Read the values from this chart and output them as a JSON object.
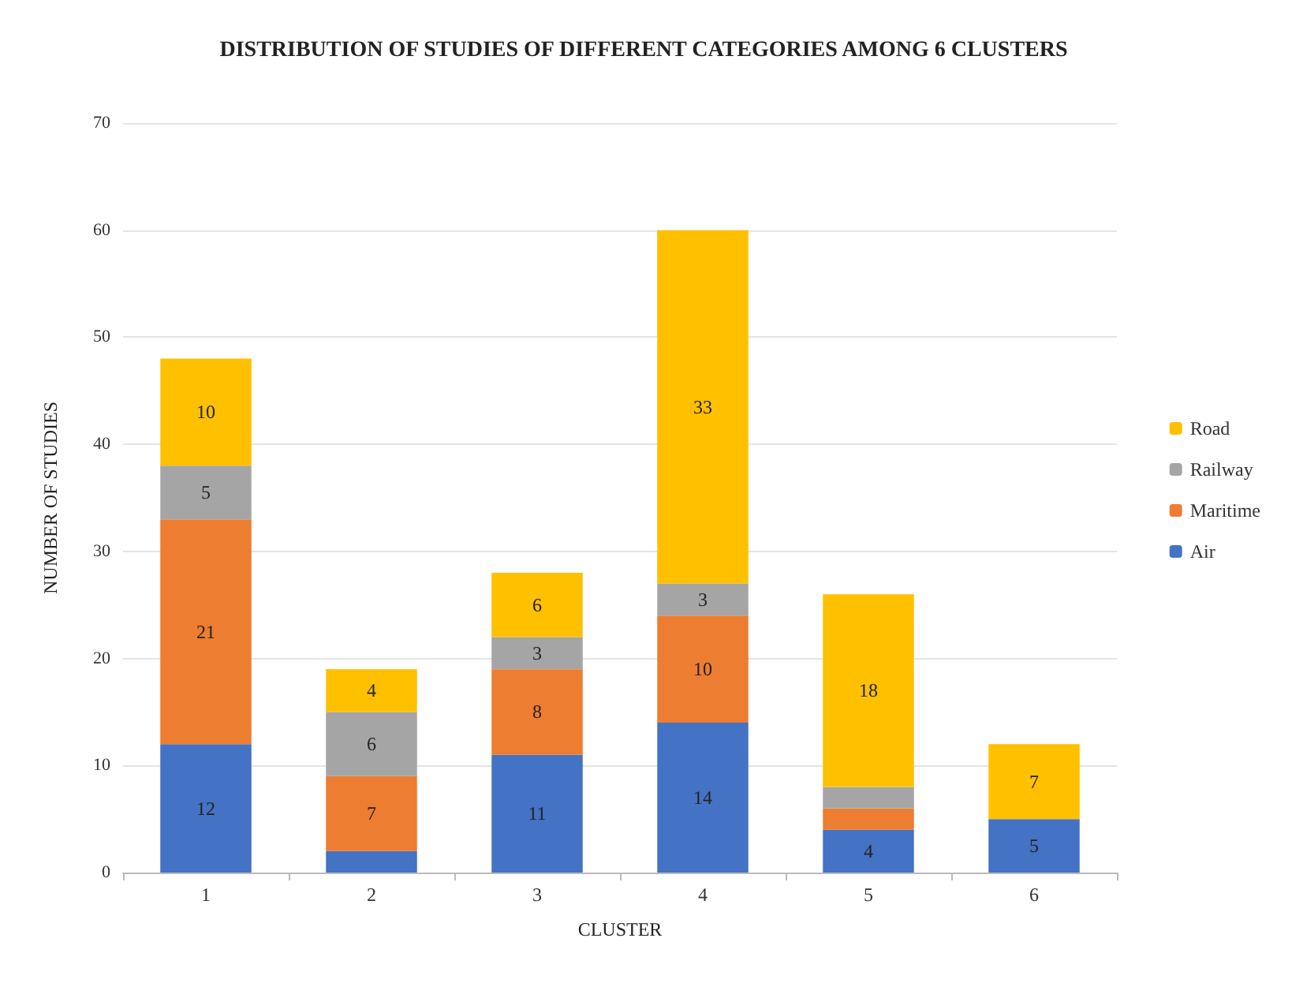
{
  "chart_data": {
    "type": "bar",
    "stacked": true,
    "title": "DISTRIBUTION OF STUDIES OF DIFFERENT CATEGORIES AMONG 6 CLUSTERS",
    "xlabel": "CLUSTER",
    "ylabel": "NUMBER OF STUDIES",
    "categories": [
      "1",
      "2",
      "3",
      "4",
      "5",
      "6"
    ],
    "series": [
      {
        "name": "Air",
        "color": "#4472c4",
        "values": [
          12,
          2,
          11,
          14,
          4,
          5
        ],
        "value_labels": [
          "12",
          null,
          "11",
          "14",
          "4",
          "5"
        ]
      },
      {
        "name": "Maritime",
        "color": "#ed7d31",
        "values": [
          21,
          7,
          8,
          10,
          2,
          0
        ],
        "value_labels": [
          "21",
          "7",
          "8",
          "10",
          null,
          null
        ]
      },
      {
        "name": "Railway",
        "color": "#a5a5a5",
        "values": [
          5,
          6,
          3,
          3,
          2,
          0
        ],
        "value_labels": [
          "5",
          "6",
          "3",
          "3",
          null,
          null
        ]
      },
      {
        "name": "Road",
        "color": "#ffc000",
        "values": [
          10,
          4,
          6,
          33,
          18,
          7
        ],
        "value_labels": [
          "10",
          "4",
          "6",
          "33",
          "18",
          "7"
        ]
      }
    ],
    "ylim": [
      0,
      70
    ],
    "yticks": [
      0,
      10,
      20,
      30,
      40,
      50,
      60,
      70
    ],
    "grid": "y",
    "legend": "right"
  }
}
